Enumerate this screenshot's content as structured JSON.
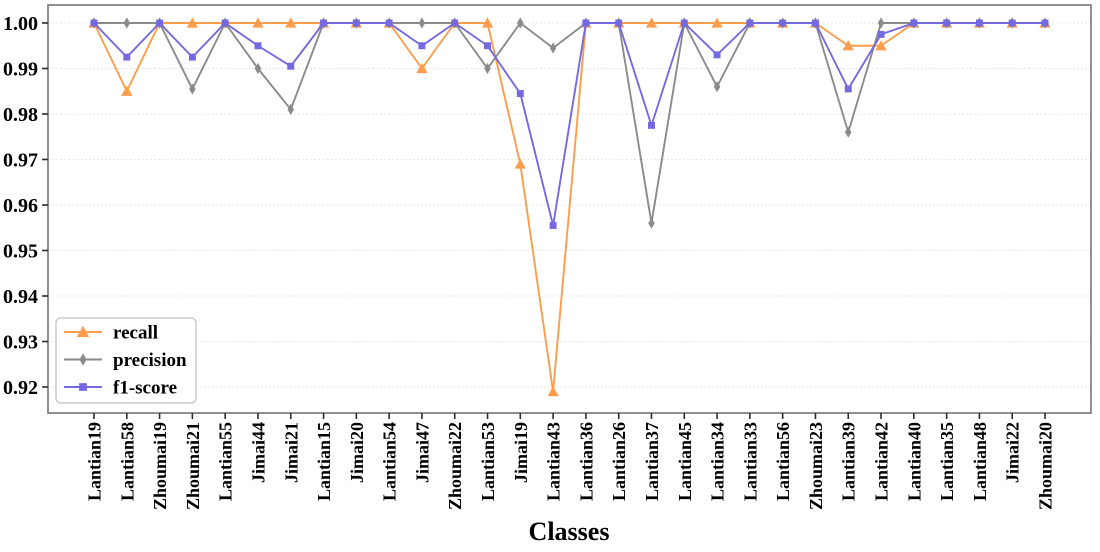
{
  "figure": {
    "title": "",
    "xlabel": "Classes",
    "background_color": "#ffffff"
  },
  "axes": {
    "y_tick_labels": [
      "1.00",
      "0.99",
      "0.98",
      "0.97",
      "0.96",
      "0.95",
      "0.94",
      "0.93",
      "0.92"
    ],
    "grid": "horizontal-dotted",
    "grid_color": "#dedede",
    "spine_color": "#757575",
    "tick_color": "#2b2b2b"
  },
  "legend": {
    "position": "lower-left",
    "border_color": "#cccccc",
    "background_color": "#ffffff",
    "entries": [
      "recall",
      "precision",
      "f1-score"
    ]
  },
  "chart_data": {
    "type": "line",
    "title": "",
    "xlabel": "Classes",
    "ylabel": "",
    "ylim": [
      0.9143,
      1.0037
    ],
    "yticks": [
      1.0,
      0.99,
      0.98,
      0.97,
      0.96,
      0.95,
      0.94,
      0.93,
      0.92
    ],
    "grid": "horizontal dotted",
    "legend_position": "lower left",
    "categories": [
      "Lantian19",
      "Lantian58",
      "Zhoumai19",
      "Zhoumai21",
      "Lantian55",
      "Jimai44",
      "Jimai21",
      "Lantian15",
      "Jimai20",
      "Lantian54",
      "Jimai47",
      "Zhoumai22",
      "Lantian53",
      "Jimai19",
      "Lantian43",
      "Lantian36",
      "Lantian26",
      "Lantian37",
      "Lantian45",
      "Lantian34",
      "Lantian33",
      "Lantian56",
      "Zhoumai23",
      "Lantian39",
      "Lantian42",
      "Lantian40",
      "Lantian35",
      "Lantian48",
      "Jimai22",
      "Zhoumai20"
    ],
    "series": [
      {
        "name": "recall",
        "color": "#fb9d4d",
        "marker": "triangle",
        "values": [
          1.0,
          0.985,
          1.0,
          1.0,
          1.0,
          1.0,
          1.0,
          1.0,
          1.0,
          1.0,
          0.99,
          1.0,
          1.0,
          0.969,
          0.919,
          1.0,
          1.0,
          1.0,
          1.0,
          1.0,
          1.0,
          1.0,
          1.0,
          0.995,
          0.995,
          1.0,
          1.0,
          1.0,
          1.0,
          1.0
        ]
      },
      {
        "name": "precision",
        "color": "#8b8b8b",
        "marker": "thin-diamond",
        "values": [
          1.0,
          1.0,
          1.0,
          0.9855,
          1.0,
          0.99,
          0.981,
          1.0,
          1.0,
          1.0,
          1.0,
          1.0,
          0.99,
          1.0,
          0.9945,
          1.0,
          1.0,
          0.956,
          1.0,
          0.986,
          1.0,
          1.0,
          1.0,
          0.976,
          1.0,
          1.0,
          1.0,
          1.0,
          1.0,
          1.0
        ]
      },
      {
        "name": "f1-score",
        "color": "#7569e2",
        "marker": "square",
        "values": [
          1.0,
          0.9925,
          1.0,
          0.9925,
          1.0,
          0.995,
          0.9905,
          1.0,
          1.0,
          1.0,
          0.995,
          1.0,
          0.995,
          0.9845,
          0.9555,
          1.0,
          1.0,
          0.9775,
          1.0,
          0.993,
          1.0,
          1.0,
          1.0,
          0.9855,
          0.9975,
          1.0,
          1.0,
          1.0,
          1.0,
          1.0
        ]
      }
    ]
  }
}
